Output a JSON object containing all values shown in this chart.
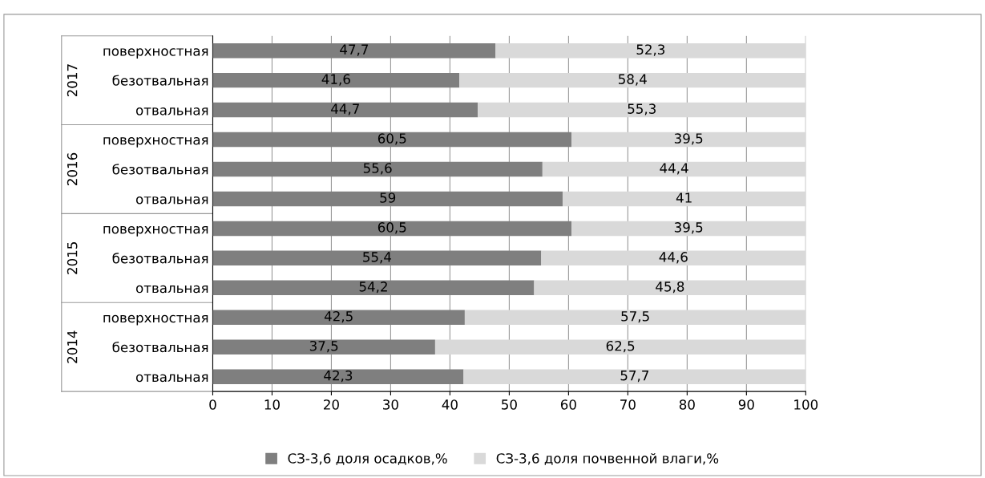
{
  "chart_data": {
    "type": "bar",
    "orientation": "horizontal",
    "stacked": true,
    "categories": [
      "поверхностная",
      "безотвальная",
      "отвальная",
      "поверхностная",
      "безотвальная",
      "отвальная",
      "поверхностная",
      "безотвальная",
      "отвальная",
      "поверхностная",
      "безотвальная",
      "отвальная"
    ],
    "annotations": [
      "2017",
      "2016",
      "2015",
      "2014"
    ],
    "series": [
      {
        "name": "СЗ-3,6 доля осадков,%",
        "color": "#7f7f7f",
        "values": [
          47.7,
          41.6,
          44.7,
          60.5,
          55.6,
          59,
          60.5,
          55.4,
          54.2,
          42.5,
          37.5,
          42.3
        ],
        "value_labels": [
          "47,7",
          "41,6",
          "44,7",
          "60,5",
          "55,6",
          "59",
          "60,5",
          "55,4",
          "54,2",
          "42,5",
          "37,5",
          "42,3"
        ]
      },
      {
        "name": "СЗ-3,6 доля почвенной влаги,%",
        "color": "#d9d9d9",
        "values": [
          52.3,
          58.4,
          55.3,
          39.5,
          44.4,
          41,
          39.5,
          44.6,
          45.8,
          57.5,
          62.5,
          57.7
        ],
        "value_labels": [
          "52,3",
          "58,4",
          "55,3",
          "39,5",
          "44,4",
          "41",
          "39,5",
          "44,6",
          "45,8",
          "57,5",
          "62,5",
          "57,7"
        ]
      }
    ],
    "xlim": [
      0,
      100
    ],
    "xticks": [
      0,
      10,
      20,
      30,
      40,
      50,
      60,
      70,
      80,
      90,
      100
    ],
    "grid": "x",
    "legend": "bottom"
  }
}
